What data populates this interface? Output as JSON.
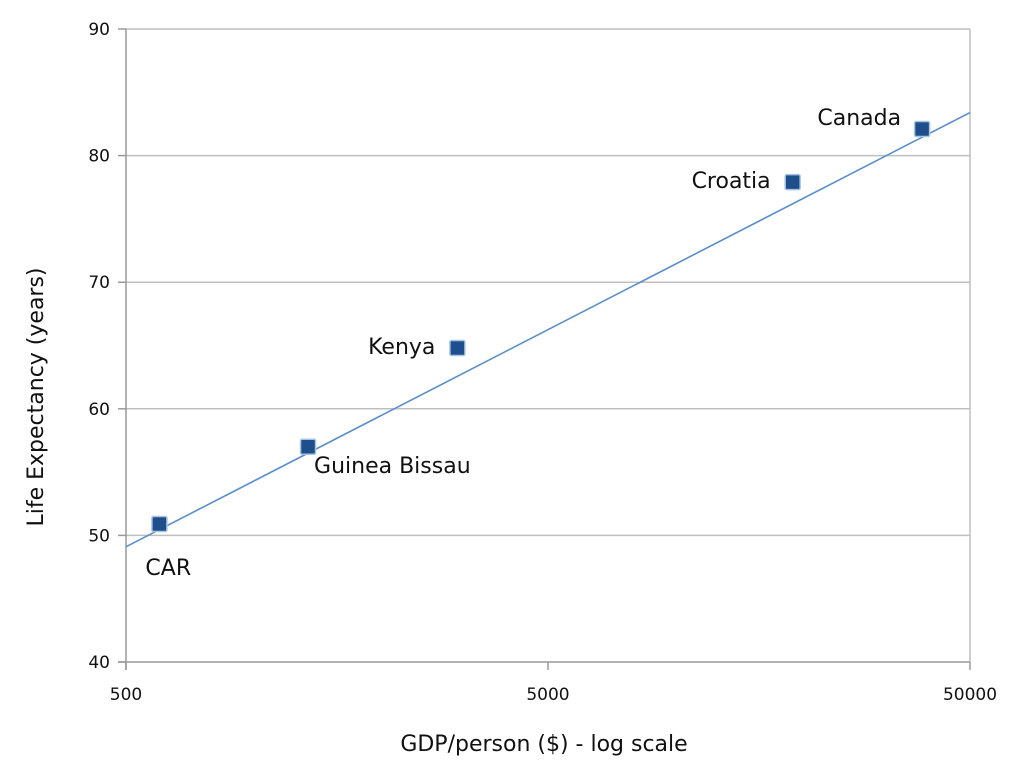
{
  "chart_data": {
    "type": "scatter",
    "xlabel": "GDP/person ($) - log scale",
    "ylabel": "Life Expectancy (years)",
    "x_scale": "log",
    "xlim": [
      500,
      50000
    ],
    "ylim": [
      40,
      90
    ],
    "x_ticks": [
      "500",
      "5000",
      "50000"
    ],
    "y_ticks": [
      "40",
      "50",
      "60",
      "70",
      "80",
      "90"
    ],
    "grid": {
      "horizontal": true,
      "vertical": false
    },
    "legend": "none",
    "colors": {
      "marker": "#1f4e8c",
      "trendline": "#5b8ec9",
      "grid": "#bfbfbf",
      "axis": "#9a9a9a"
    },
    "points": [
      {
        "label": "CAR",
        "x": 600,
        "y": 50.9,
        "label_position": "below"
      },
      {
        "label": "Guinea Bissau",
        "x": 1350,
        "y": 57,
        "label_position": "below-right"
      },
      {
        "label": "Kenya",
        "x": 3050,
        "y": 64.8,
        "label_position": "left"
      },
      {
        "label": "Croatia",
        "x": 19000,
        "y": 77.9,
        "label_position": "left"
      },
      {
        "label": "Canada",
        "x": 38500,
        "y": 82.1,
        "label_position": "upper-left"
      }
    ],
    "trendline": {
      "type": "logarithmic",
      "from": {
        "x": 500,
        "y": 49.1
      },
      "to": {
        "x": 50000,
        "y": 83.4
      }
    }
  }
}
